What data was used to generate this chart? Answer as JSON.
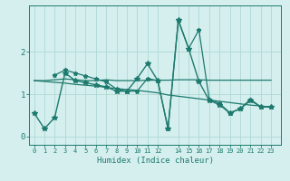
{
  "xlabel": "Humidex (Indice chaleur)",
  "bg_color": "#d4efee",
  "grid_color": "#aed8d5",
  "line_color": "#1e7a6e",
  "xtick_labels": [
    "0",
    "1",
    "2",
    "3",
    "4",
    "5",
    "6",
    "7",
    "8",
    "9",
    "10",
    "11",
    "12",
    "14",
    "15",
    "16",
    "17",
    "18",
    "19",
    "20",
    "21",
    "22",
    "23"
  ],
  "xtick_pos": [
    0,
    1,
    2,
    3,
    4,
    5,
    6,
    7,
    8,
    9,
    10,
    11,
    12,
    14,
    15,
    16,
    17,
    18,
    19,
    20,
    21,
    22,
    23
  ],
  "yticks": [
    0,
    1,
    2
  ],
  "xlim": [
    -0.5,
    24.0
  ],
  "ylim": [
    -0.2,
    3.1
  ],
  "series": [
    {
      "x": [
        0,
        1,
        2,
        3,
        4,
        5,
        6,
        7,
        8,
        9,
        10,
        11,
        12,
        13,
        14,
        15,
        16,
        17,
        18,
        19,
        20,
        21,
        22,
        23
      ],
      "y": [
        0.55,
        0.18,
        0.45,
        1.5,
        1.32,
        1.27,
        1.22,
        1.17,
        1.07,
        1.07,
        1.37,
        1.72,
        1.32,
        0.18,
        2.75,
        2.08,
        1.3,
        0.85,
        0.75,
        0.55,
        0.65,
        0.85,
        0.7,
        0.7
      ],
      "marker": "*",
      "ms": 4,
      "lw": 1.0
    },
    {
      "x": [
        0,
        1,
        2,
        3,
        4,
        5,
        6,
        7,
        8,
        9,
        10,
        11,
        12,
        13,
        14,
        15,
        16,
        17,
        18,
        19,
        20,
        21,
        22,
        23
      ],
      "y": [
        1.32,
        1.32,
        1.34,
        1.36,
        1.34,
        1.32,
        1.32,
        1.34,
        1.32,
        1.32,
        1.32,
        1.33,
        1.33,
        1.33,
        1.34,
        1.34,
        1.34,
        1.33,
        1.33,
        1.33,
        1.33,
        1.33,
        1.33,
        1.33
      ],
      "marker": null,
      "ms": 0,
      "lw": 0.9
    },
    {
      "x": [
        0,
        1,
        2,
        3,
        4,
        5,
        6,
        7,
        8,
        9,
        10,
        11,
        12,
        13,
        14,
        15,
        16,
        17,
        18,
        19,
        20,
        21,
        22,
        23
      ],
      "y": [
        1.32,
        1.3,
        1.28,
        1.26,
        1.23,
        1.21,
        1.19,
        1.16,
        1.13,
        1.11,
        1.09,
        1.06,
        1.03,
        0.98,
        0.95,
        0.92,
        0.89,
        0.86,
        0.83,
        0.8,
        0.77,
        0.74,
        0.72,
        0.69
      ],
      "marker": null,
      "ms": 0,
      "lw": 0.9
    },
    {
      "x": [
        2,
        3,
        4,
        5,
        6,
        7,
        8,
        9,
        10,
        11,
        12,
        13,
        14,
        15,
        16,
        17,
        18,
        19,
        20,
        21,
        22,
        23
      ],
      "y": [
        1.45,
        1.57,
        1.5,
        1.43,
        1.36,
        1.29,
        1.12,
        1.07,
        1.07,
        1.37,
        1.32,
        0.18,
        2.75,
        2.08,
        2.52,
        0.88,
        0.78,
        0.56,
        0.65,
        0.88,
        0.7,
        0.7
      ],
      "marker": "*",
      "ms": 3.5,
      "lw": 0.9
    }
  ]
}
